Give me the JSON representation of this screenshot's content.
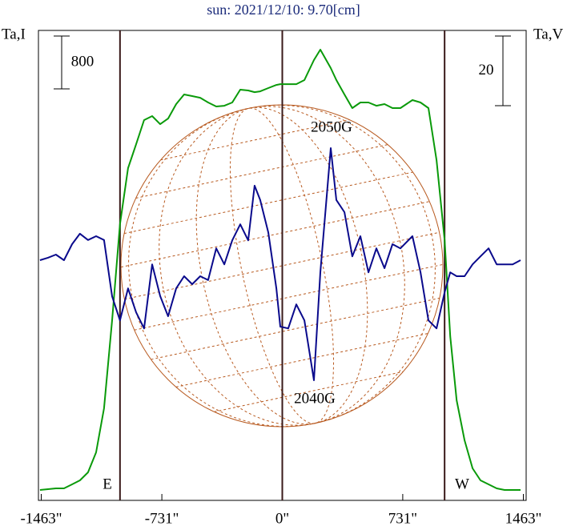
{
  "chart_data": {
    "type": "line",
    "title": "sun: 2021/12/10: 9.70[cm]",
    "ylabel": "Ta,I",
    "y2label": "Ta,V",
    "x": [
      -1471,
      -1422,
      -1374,
      -1325,
      -1276,
      -1228,
      -1179,
      -1130,
      -1082,
      -1033,
      -985,
      -936,
      -887,
      -839,
      -790,
      -741,
      -693,
      -644,
      -596,
      -547,
      -498,
      -450,
      -401,
      -352,
      -304,
      -255,
      -207,
      -168,
      -134,
      -85,
      -36,
      -12,
      36,
      85,
      134,
      192,
      231,
      294,
      328,
      377,
      425,
      474,
      523,
      571,
      620,
      669,
      717,
      790,
      839,
      887,
      936,
      985,
      1019,
      1058,
      1106,
      1155,
      1203,
      1252,
      1301,
      1349,
      1398,
      1446
    ],
    "series": [
      {
        "name": "Ta,I",
        "color": "#0a9a0a",
        "values": [
          158,
          170,
          182,
          182,
          242,
          303,
          424,
          727,
          1394,
          2727,
          4181,
          5030,
          5393,
          5757,
          5818,
          5696,
          5781,
          6000,
          6145,
          6121,
          6096,
          6024,
          5963,
          5975,
          6024,
          6218,
          6206,
          6181,
          6193,
          6242,
          6290,
          6302,
          6302,
          6302,
          6363,
          6666,
          6824,
          6545,
          6363,
          6145,
          5939,
          6024,
          6024,
          5975,
          6000,
          5939,
          5939,
          6060,
          6024,
          5939,
          5151,
          3939,
          2485,
          1515,
          909,
          485,
          303,
          242,
          182,
          158,
          158,
          158
        ]
      },
      {
        "name": "Ta,V",
        "color": "#0a0a8c",
        "axis": "y2",
        "values": [
          -1.0,
          -0.3,
          0.6,
          -1.0,
          3.6,
          6.6,
          4.8,
          5.9,
          4.8,
          -11.4,
          -18.3,
          -9.1,
          -16.0,
          -20.6,
          -2.2,
          -11.3,
          -17.1,
          -9.1,
          -5.6,
          -7.9,
          -5.6,
          -6.7,
          2.4,
          -2.2,
          4.7,
          9.3,
          4.7,
          20.4,
          16.3,
          7.0,
          -9.1,
          -20.1,
          -20.6,
          -13.7,
          -18.3,
          -35.5,
          -4.5,
          31.2,
          16.3,
          12.8,
          0.1,
          5.9,
          -4.5,
          2.4,
          -3.3,
          3.6,
          2.4,
          5.9,
          -4.5,
          -18.3,
          -20.6,
          -10.2,
          -4.5,
          -5.6,
          -5.6,
          -2.2,
          0.1,
          2.4,
          -2.2,
          -2.2,
          -2.2,
          -1.0
        ]
      }
    ],
    "xlim": [
      -1480,
      1480
    ],
    "xticks": [
      {
        "value": -1463,
        "label": "-1463\""
      },
      {
        "value": -731,
        "label": "-731\""
      },
      {
        "value": 0,
        "label": "0\""
      },
      {
        "value": 731,
        "label": "731\""
      },
      {
        "value": 1463,
        "label": "1463\""
      }
    ],
    "ylim": [
      0,
      7115
    ],
    "y2lim": [
      -70,
      65
    ],
    "scale_bars": [
      800,
      20
    ],
    "vlines": [
      -985,
      0,
      985
    ],
    "annotations": [
      "2050G",
      "2040G",
      "E",
      "W"
    ]
  }
}
